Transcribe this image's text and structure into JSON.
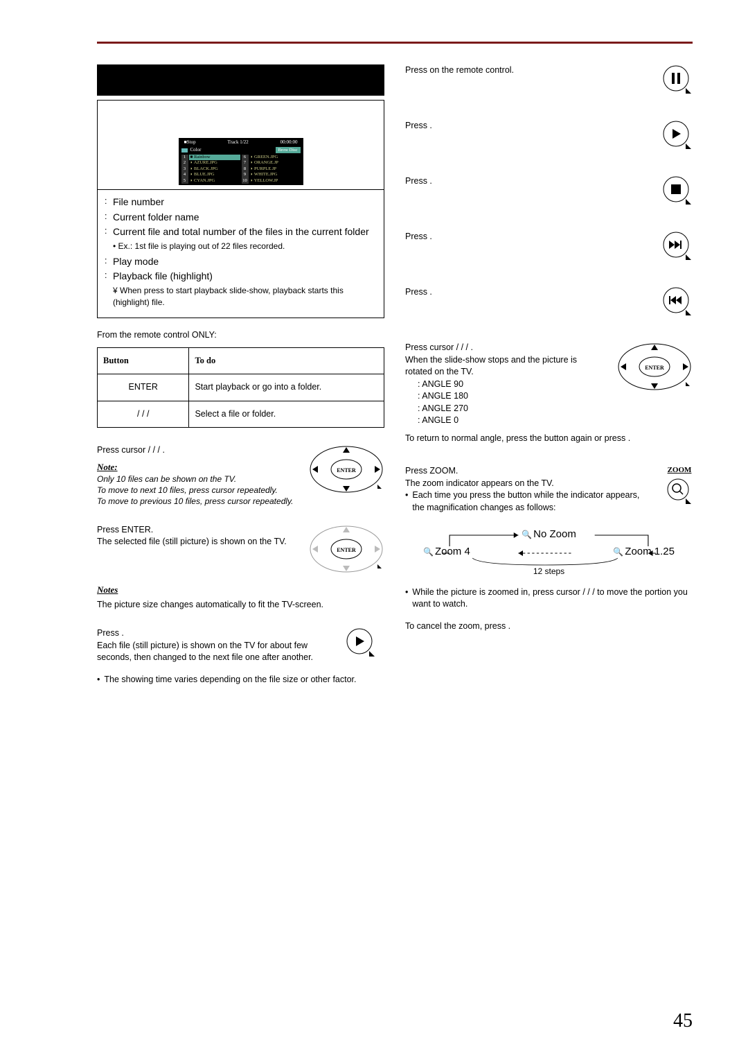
{
  "page_number": "45",
  "colors": {
    "rule": "#7a1a1a",
    "text": "#000000",
    "bg": "#ffffff"
  },
  "tv": {
    "status": "Stop",
    "track": "Track 1/22",
    "time": "00:00:00",
    "folder": "Color",
    "brow": "Brow Disc",
    "left_items": [
      {
        "n": "1",
        "name": "Rainbow",
        "hl": true
      },
      {
        "n": "2",
        "name": "AZURE.JPG"
      },
      {
        "n": "3",
        "name": "BLACK.JPG"
      },
      {
        "n": "4",
        "name": "BLUE.JPG"
      },
      {
        "n": "5",
        "name": "CYAN.JPG"
      }
    ],
    "right_items": [
      {
        "n": "6",
        "name": "GREEN.JPG"
      },
      {
        "n": "7",
        "name": "ORANGE.JP"
      },
      {
        "n": "8",
        "name": "PURPLE.JP"
      },
      {
        "n": "9",
        "name": "WHITE.JPG"
      },
      {
        "n": "10",
        "name": "YELLOW.JP"
      }
    ]
  },
  "desc": {
    "a": "File number",
    "b": "Current folder name",
    "c": "Current file and total number of the files in the current folder",
    "c_sub": "• Ex.: 1st file is playing out of 22 files recorded.",
    "d": "Play mode",
    "e": "Playback file (highlight)",
    "e_sub": "¥ When press      to start playback slide-show, playback starts this (highlight) file."
  },
  "remote_only": "From the remote control ONLY:",
  "table": {
    "h1": "Button",
    "h2": "To do",
    "r1c1": "ENTER",
    "r1c2": "Start playback or go into a folder.",
    "r2c1": "/   /   /",
    "r2c2": "Select a file or folder."
  },
  "select": {
    "line": "Press cursor     /   /   /   .",
    "note_t": "Note:",
    "note_b1": "Only 10 files can be shown on the TV.",
    "note_b2": "To move to next 10 files, press cursor      repeatedly.",
    "note_b3": "To move to previous 10 files, press cursor      repeatedly."
  },
  "show": {
    "l1": "Press ENTER.",
    "l2": "The selected file (still picture) is shown on the TV.",
    "notes_t": "Notes",
    "notes_b": "The picture size changes automatically to fit the TV-screen."
  },
  "slide": {
    "l1": "Press    .",
    "l2": "Each file (still picture) is shown on the TV for about few seconds, then changed to the next file one after another.",
    "bul": "The showing time varies depending on the file size or other factor."
  },
  "right": {
    "pause": "Press      on the remote control.",
    "resume": "Press    .",
    "stop": "Press    .",
    "skipf": "Press      .",
    "skipb": "Press      .",
    "rotate_l1": "Press cursor     /   /   /   .",
    "rotate_l2": "When the slide-show stops and the picture is rotated on the TV.",
    "angles": [
      "ANGLE 90",
      "ANGLE 180",
      "ANGLE 270",
      "ANGLE 0"
    ],
    "rotate_ret": "To return to normal angle, press the button again or press    .",
    "zoom_l1": "Press ZOOM.",
    "zoom_l2": "The zoom indicator appears on the TV.",
    "zoom_bul": "Each time you press the button while the indicator appears, the magnification changes as follows:",
    "zoom_label": "ZOOM",
    "zoom_no": "No Zoom",
    "zoom_a": "Zoom     4",
    "zoom_b": "Zoom     1.25",
    "zoom_steps": "12 steps",
    "zoom_move": "While the picture is zoomed in, press cursor     /   /   /      to move the portion you want to watch.",
    "zoom_cancel": "To cancel the zoom, press    ."
  }
}
